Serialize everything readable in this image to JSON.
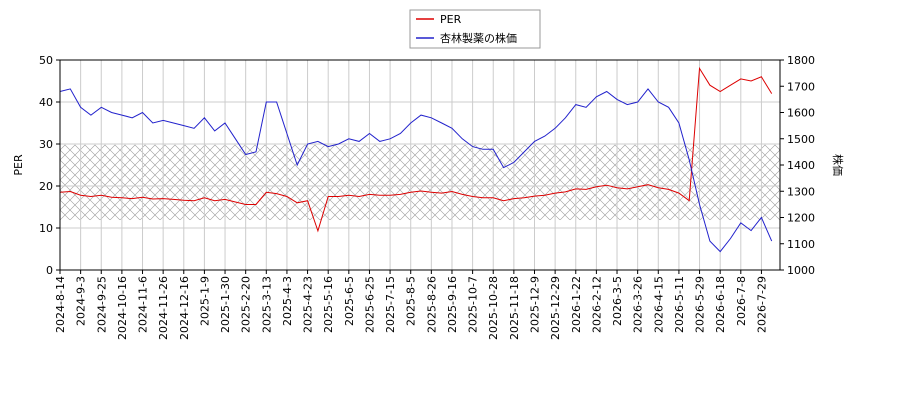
{
  "chart_data": {
    "type": "line",
    "categories": [
      "2024-8-14",
      null,
      "2024-9-3",
      null,
      "2024-9-25",
      null,
      "2024-10-16",
      null,
      "2024-11-6",
      null,
      "2024-11-26",
      null,
      "2024-12-16",
      null,
      "2025-1-9",
      null,
      "2025-1-30",
      null,
      "2025-2-20",
      null,
      "2025-3-13",
      null,
      "2025-4-3",
      null,
      "2025-4-23",
      null,
      "2025-5-16",
      null,
      "2025-6-5",
      null,
      "2025-6-25",
      null,
      "2025-7-15",
      null,
      "2025-8-5",
      null,
      "2025-8-26",
      null,
      "2025-9-16",
      null,
      "2025-10-7",
      null,
      "2025-10-28",
      null,
      "2025-11-18",
      null,
      "2025-12-9",
      null,
      "2025-12-29",
      null,
      "2026-1-22",
      null,
      "2026-2-12",
      null,
      "2026-3-5",
      null,
      "2026-3-26",
      null,
      "2026-4-15",
      null,
      "2026-5-11",
      null,
      "2026-5-29",
      null,
      "2026-6-18",
      null,
      "2026-7-8",
      null,
      "2026-7-29",
      null
    ],
    "series": [
      {
        "name": "PER",
        "color": "#dd0000",
        "values": [
          18.5,
          18.7,
          17.8,
          17.5,
          17.8,
          17.3,
          17.2,
          17.0,
          17.3,
          16.9,
          17.0,
          16.8,
          16.6,
          16.5,
          17.2,
          16.5,
          16.8,
          16.2,
          15.6,
          15.6,
          18.5,
          18.2,
          17.5,
          16.0,
          16.5,
          9.3,
          17.5,
          17.5,
          17.8,
          17.5,
          18.0,
          17.8,
          17.8,
          18.0,
          18.5,
          18.8,
          18.5,
          18.3,
          18.7,
          18.0,
          17.5,
          17.2,
          17.2,
          16.5,
          17.0,
          17.2,
          17.6,
          17.8,
          18.3,
          18.6,
          19.3,
          19.2,
          19.8,
          20.2,
          19.6,
          19.3,
          19.8,
          20.3,
          19.6,
          19.2,
          18.3,
          16.5,
          48,
          44,
          42.5,
          44,
          45.5,
          45,
          46,
          42
        ]
      },
      {
        "name": "杏林製薬の株価",
        "color": "#2222cc",
        "axis": "y2",
        "values": [
          1680,
          1690,
          1620,
          1590,
          1620,
          1600,
          1590,
          1580,
          1600,
          1560,
          1570,
          1560,
          1550,
          1540,
          1580,
          1530,
          1560,
          1500,
          1440,
          1450,
          1640,
          1640,
          1520,
          1400,
          1480,
          1490,
          1470,
          1480,
          1500,
          1490,
          1520,
          1490,
          1500,
          1520,
          1560,
          1590,
          1580,
          1560,
          1540,
          1500,
          1470,
          1460,
          1460,
          1390,
          1410,
          1450,
          1490,
          1510,
          1540,
          1580,
          1630,
          1620,
          1660,
          1680,
          1650,
          1630,
          1640,
          1690,
          1640,
          1620,
          1560,
          1420,
          1250,
          1110,
          1070,
          1120,
          1180,
          1150,
          1200,
          1110
        ]
      }
    ],
    "band": [
      11.9,
      29.8
    ],
    "ylabel": "PER",
    "y2label": "株価",
    "ylim": [
      0,
      50
    ],
    "yticks": [
      0,
      10,
      20,
      30,
      40,
      50
    ],
    "y2lim": [
      1000,
      1800
    ],
    "y2ticks": [
      1000,
      1100,
      1200,
      1300,
      1400,
      1500,
      1600,
      1700,
      1800
    ],
    "grid": true
  }
}
